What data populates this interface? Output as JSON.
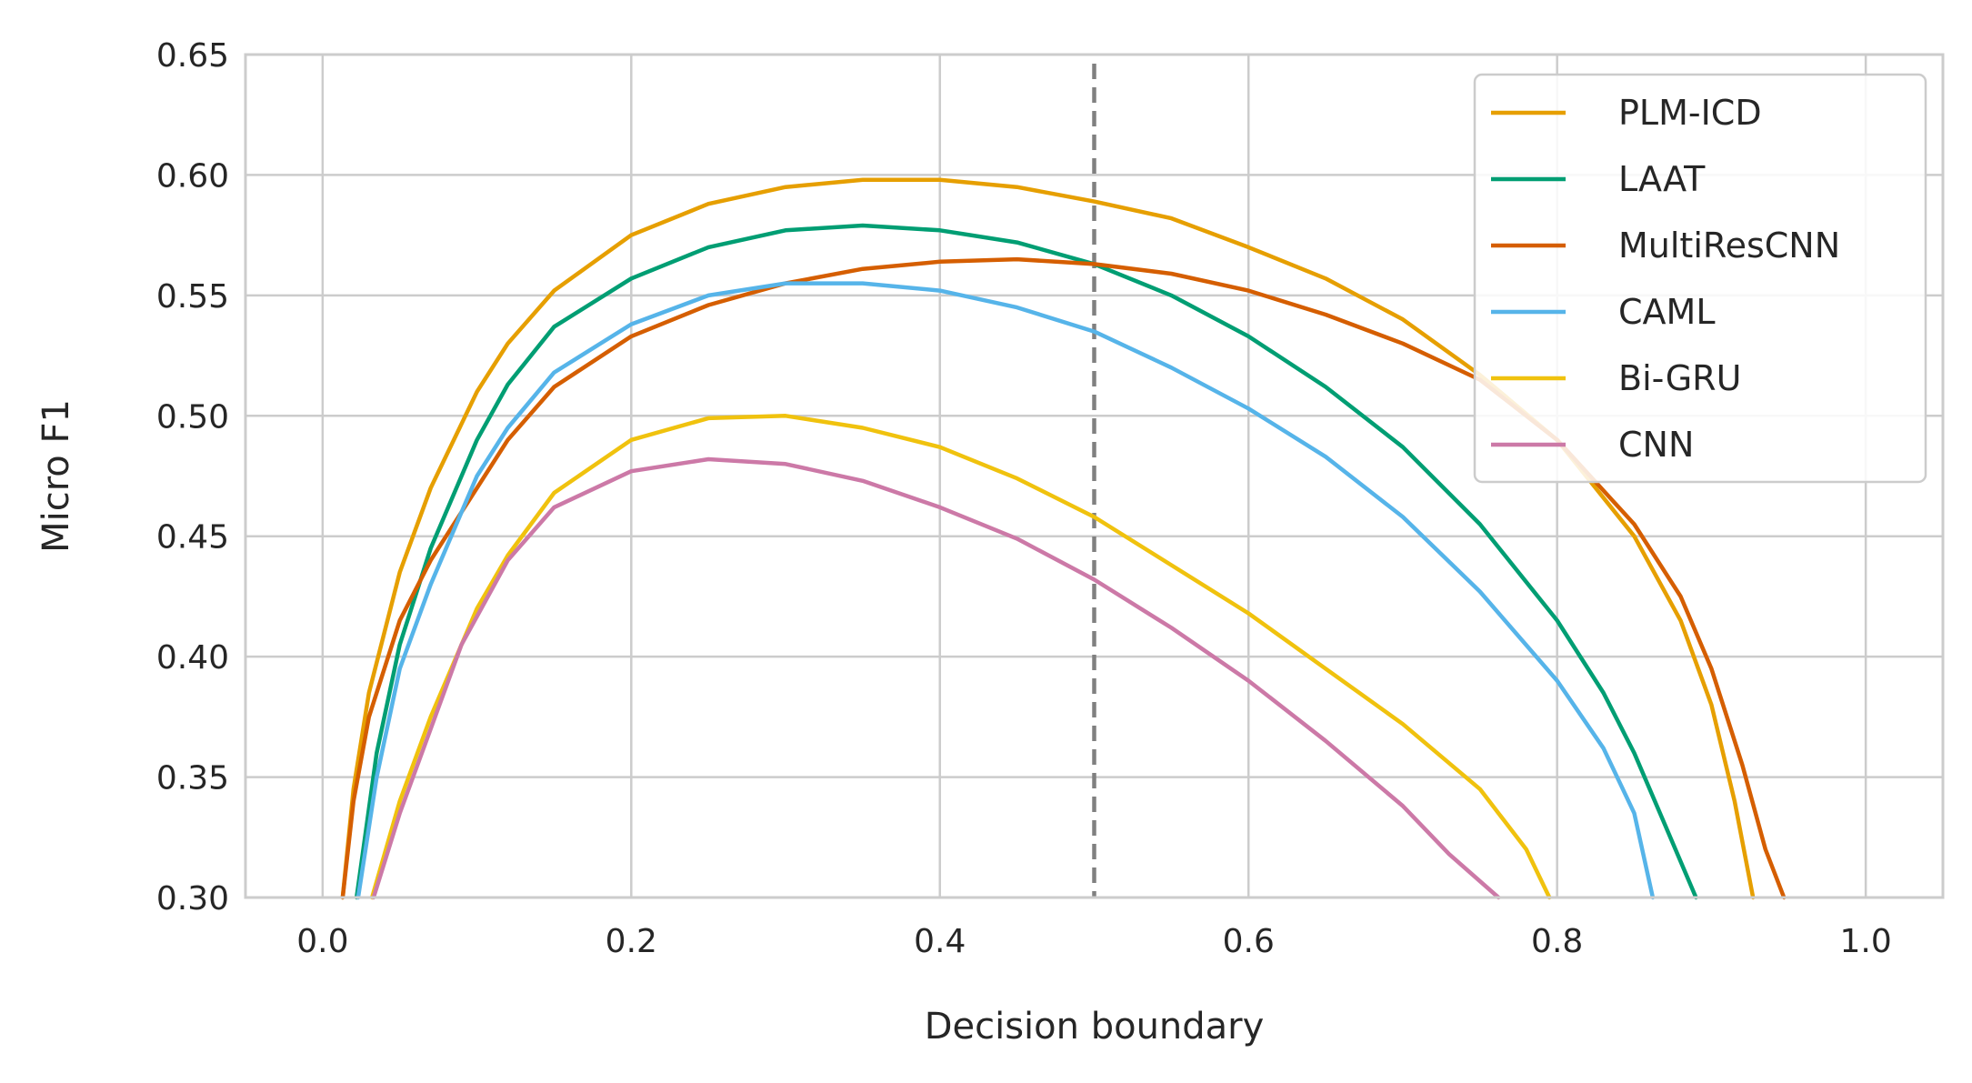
{
  "chart_data": {
    "type": "line",
    "title": "",
    "xlabel": "Decision boundary",
    "ylabel": "Micro F1",
    "xlim": [
      -0.05,
      1.05
    ],
    "ylim": [
      0.3,
      0.65
    ],
    "x_ticks": [
      0.0,
      0.2,
      0.4,
      0.6,
      0.8,
      1.0
    ],
    "x_tick_labels": [
      "0.0",
      "0.2",
      "0.4",
      "0.6",
      "0.8",
      "1.0"
    ],
    "y_ticks": [
      0.3,
      0.35,
      0.4,
      0.45,
      0.5,
      0.55,
      0.6,
      0.65
    ],
    "y_tick_labels": [
      "0.30",
      "0.35",
      "0.40",
      "0.45",
      "0.50",
      "0.55",
      "0.60",
      "0.65"
    ],
    "grid": true,
    "legend": "top-right",
    "reference_line": {
      "x": 0.5,
      "style": "dashed",
      "color": "#808080"
    },
    "series": [
      {
        "name": "PLM-ICD",
        "color": "#E69F00",
        "points": [
          [
            0.013,
            0.3
          ],
          [
            0.02,
            0.345
          ],
          [
            0.03,
            0.385
          ],
          [
            0.05,
            0.435
          ],
          [
            0.07,
            0.47
          ],
          [
            0.1,
            0.51
          ],
          [
            0.12,
            0.53
          ],
          [
            0.15,
            0.552
          ],
          [
            0.2,
            0.575
          ],
          [
            0.25,
            0.588
          ],
          [
            0.3,
            0.595
          ],
          [
            0.35,
            0.598
          ],
          [
            0.4,
            0.598
          ],
          [
            0.45,
            0.595
          ],
          [
            0.5,
            0.589
          ],
          [
            0.55,
            0.582
          ],
          [
            0.6,
            0.57
          ],
          [
            0.65,
            0.557
          ],
          [
            0.7,
            0.54
          ],
          [
            0.75,
            0.517
          ],
          [
            0.8,
            0.49
          ],
          [
            0.85,
            0.45
          ],
          [
            0.88,
            0.415
          ],
          [
            0.9,
            0.38
          ],
          [
            0.915,
            0.34
          ],
          [
            0.927,
            0.3
          ]
        ]
      },
      {
        "name": "LAAT",
        "color": "#009E73",
        "points": [
          [
            0.022,
            0.3
          ],
          [
            0.035,
            0.36
          ],
          [
            0.05,
            0.405
          ],
          [
            0.07,
            0.445
          ],
          [
            0.1,
            0.49
          ],
          [
            0.12,
            0.513
          ],
          [
            0.15,
            0.537
          ],
          [
            0.2,
            0.557
          ],
          [
            0.25,
            0.57
          ],
          [
            0.3,
            0.577
          ],
          [
            0.35,
            0.579
          ],
          [
            0.4,
            0.577
          ],
          [
            0.45,
            0.572
          ],
          [
            0.5,
            0.563
          ],
          [
            0.55,
            0.55
          ],
          [
            0.6,
            0.533
          ],
          [
            0.65,
            0.512
          ],
          [
            0.7,
            0.487
          ],
          [
            0.75,
            0.455
          ],
          [
            0.8,
            0.415
          ],
          [
            0.83,
            0.385
          ],
          [
            0.85,
            0.36
          ],
          [
            0.87,
            0.33
          ],
          [
            0.89,
            0.3
          ]
        ]
      },
      {
        "name": "MultiResCNN",
        "color": "#D55E00",
        "points": [
          [
            0.013,
            0.3
          ],
          [
            0.02,
            0.34
          ],
          [
            0.03,
            0.375
          ],
          [
            0.05,
            0.415
          ],
          [
            0.07,
            0.44
          ],
          [
            0.1,
            0.47
          ],
          [
            0.12,
            0.49
          ],
          [
            0.15,
            0.512
          ],
          [
            0.2,
            0.533
          ],
          [
            0.25,
            0.546
          ],
          [
            0.3,
            0.555
          ],
          [
            0.35,
            0.561
          ],
          [
            0.4,
            0.564
          ],
          [
            0.45,
            0.565
          ],
          [
            0.5,
            0.563
          ],
          [
            0.55,
            0.559
          ],
          [
            0.6,
            0.552
          ],
          [
            0.65,
            0.542
          ],
          [
            0.7,
            0.53
          ],
          [
            0.75,
            0.515
          ],
          [
            0.8,
            0.49
          ],
          [
            0.85,
            0.455
          ],
          [
            0.88,
            0.425
          ],
          [
            0.9,
            0.395
          ],
          [
            0.92,
            0.355
          ],
          [
            0.935,
            0.32
          ],
          [
            0.947,
            0.3
          ]
        ]
      },
      {
        "name": "CAML",
        "color": "#56B4E9",
        "points": [
          [
            0.023,
            0.3
          ],
          [
            0.035,
            0.35
          ],
          [
            0.05,
            0.395
          ],
          [
            0.07,
            0.43
          ],
          [
            0.1,
            0.475
          ],
          [
            0.12,
            0.495
          ],
          [
            0.15,
            0.518
          ],
          [
            0.2,
            0.538
          ],
          [
            0.25,
            0.55
          ],
          [
            0.3,
            0.555
          ],
          [
            0.35,
            0.555
          ],
          [
            0.4,
            0.552
          ],
          [
            0.45,
            0.545
          ],
          [
            0.5,
            0.535
          ],
          [
            0.55,
            0.52
          ],
          [
            0.6,
            0.503
          ],
          [
            0.65,
            0.483
          ],
          [
            0.7,
            0.458
          ],
          [
            0.75,
            0.427
          ],
          [
            0.8,
            0.39
          ],
          [
            0.83,
            0.362
          ],
          [
            0.85,
            0.335
          ],
          [
            0.862,
            0.3
          ]
        ]
      },
      {
        "name": "Bi-GRU",
        "color": "#F0C20E",
        "points": [
          [
            0.032,
            0.3
          ],
          [
            0.05,
            0.34
          ],
          [
            0.07,
            0.375
          ],
          [
            0.1,
            0.42
          ],
          [
            0.12,
            0.442
          ],
          [
            0.15,
            0.468
          ],
          [
            0.2,
            0.49
          ],
          [
            0.25,
            0.499
          ],
          [
            0.3,
            0.5
          ],
          [
            0.35,
            0.495
          ],
          [
            0.4,
            0.487
          ],
          [
            0.45,
            0.474
          ],
          [
            0.5,
            0.458
          ],
          [
            0.55,
            0.438
          ],
          [
            0.6,
            0.418
          ],
          [
            0.65,
            0.395
          ],
          [
            0.7,
            0.372
          ],
          [
            0.75,
            0.345
          ],
          [
            0.78,
            0.32
          ],
          [
            0.795,
            0.3
          ]
        ]
      },
      {
        "name": "CNN",
        "color": "#CC79A7",
        "points": [
          [
            0.033,
            0.3
          ],
          [
            0.05,
            0.335
          ],
          [
            0.07,
            0.37
          ],
          [
            0.09,
            0.405
          ],
          [
            0.12,
            0.44
          ],
          [
            0.15,
            0.462
          ],
          [
            0.2,
            0.477
          ],
          [
            0.25,
            0.482
          ],
          [
            0.3,
            0.48
          ],
          [
            0.35,
            0.473
          ],
          [
            0.4,
            0.462
          ],
          [
            0.45,
            0.449
          ],
          [
            0.5,
            0.432
          ],
          [
            0.55,
            0.412
          ],
          [
            0.6,
            0.39
          ],
          [
            0.65,
            0.365
          ],
          [
            0.7,
            0.338
          ],
          [
            0.73,
            0.318
          ],
          [
            0.762,
            0.3
          ]
        ]
      }
    ]
  }
}
